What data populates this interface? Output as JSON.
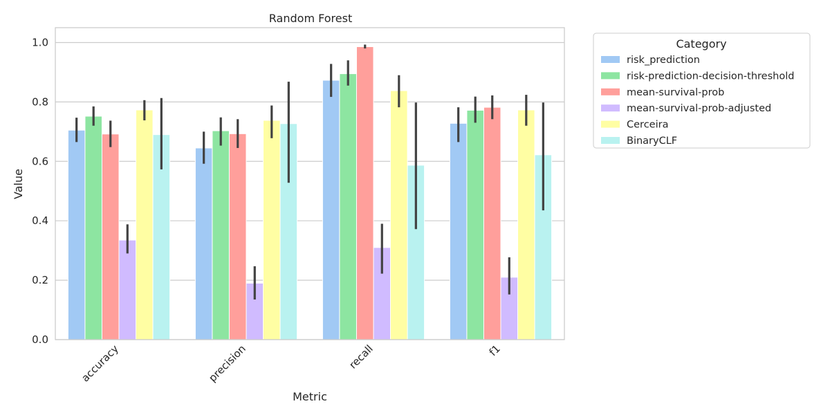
{
  "chart_data": {
    "type": "bar",
    "title": "Random Forest",
    "xlabel": "Metric",
    "ylabel": "Value",
    "ylim": [
      0,
      1.05
    ],
    "yticks": [
      "0.0",
      "0.2",
      "0.4",
      "0.6",
      "0.8",
      "1.0"
    ],
    "ytick_values": [
      0,
      0.2,
      0.4,
      0.6,
      0.8,
      1.0
    ],
    "grid": true,
    "categories": [
      "accuracy",
      "precision",
      "recall",
      "f1"
    ],
    "legend": {
      "title": "Category",
      "placement": "outside-right"
    },
    "series": [
      {
        "name": "risk_prediction",
        "color": "#a1c9f4",
        "values": [
          0.705,
          0.645,
          0.873,
          0.728
        ],
        "ci_low": [
          0.665,
          0.592,
          0.817,
          0.665
        ],
        "ci_high": [
          0.747,
          0.7,
          0.928,
          0.782
        ]
      },
      {
        "name": "risk-prediction-decision-threshold",
        "color": "#8de5a1",
        "values": [
          0.752,
          0.703,
          0.895,
          0.772
        ],
        "ci_low": [
          0.72,
          0.653,
          0.855,
          0.73
        ],
        "ci_high": [
          0.785,
          0.748,
          0.94,
          0.818
        ]
      },
      {
        "name": "mean-survival-prob",
        "color": "#ff9f9b",
        "values": [
          0.692,
          0.693,
          0.986,
          0.782
        ],
        "ci_low": [
          0.648,
          0.645,
          0.98,
          0.742
        ],
        "ci_high": [
          0.737,
          0.742,
          0.993,
          0.822
        ]
      },
      {
        "name": "mean-survival-prob-adjusted",
        "color": "#d0bbff",
        "values": [
          0.335,
          0.19,
          0.31,
          0.21
        ],
        "ci_low": [
          0.29,
          0.135,
          0.222,
          0.152
        ],
        "ci_high": [
          0.388,
          0.247,
          0.39,
          0.277
        ]
      },
      {
        "name": "Cerceira",
        "color": "#fffea3",
        "values": [
          0.773,
          0.738,
          0.838,
          0.773
        ],
        "ci_low": [
          0.738,
          0.678,
          0.782,
          0.72
        ],
        "ci_high": [
          0.806,
          0.788,
          0.89,
          0.824
        ]
      },
      {
        "name": "BinaryCLF",
        "color": "#b9f2f0",
        "values": [
          0.69,
          0.727,
          0.587,
          0.622
        ],
        "ci_low": [
          0.573,
          0.528,
          0.372,
          0.435
        ],
        "ci_high": [
          0.813,
          0.868,
          0.798,
          0.798
        ]
      }
    ]
  }
}
